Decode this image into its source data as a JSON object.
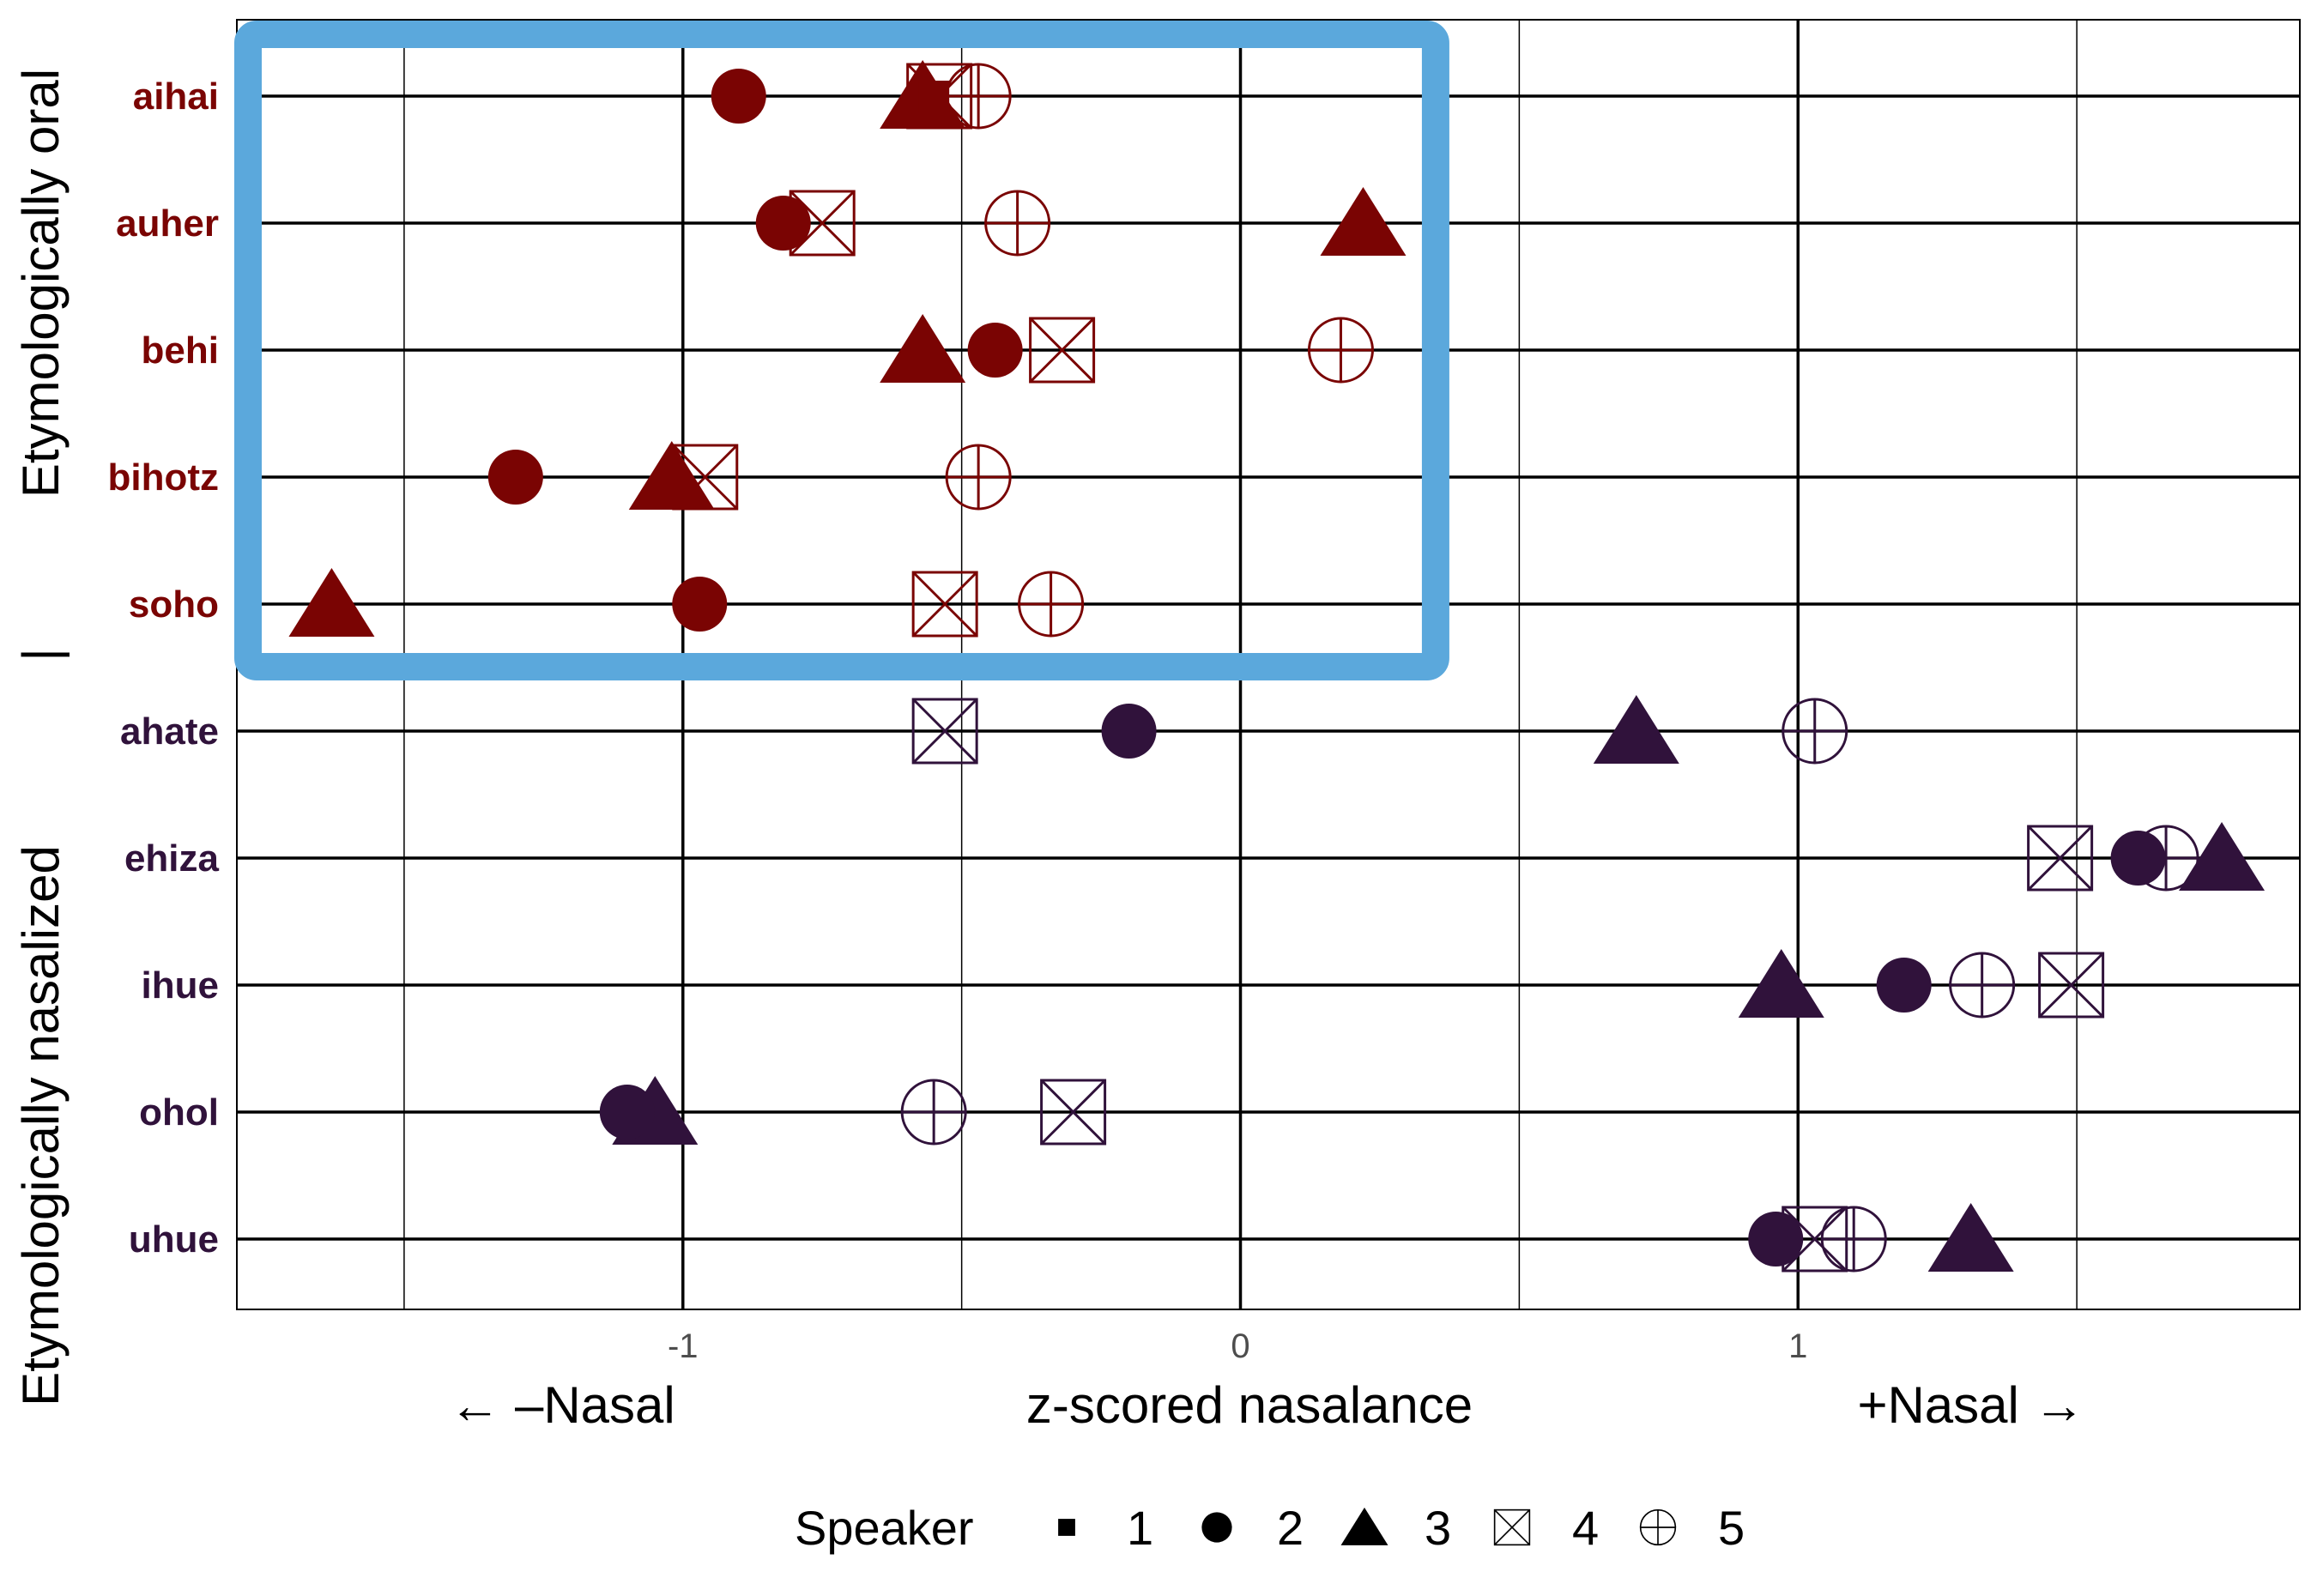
{
  "chart_data": {
    "type": "scatter",
    "xlabel": "z-scored nasalance",
    "xlabel_left": "← –Nasal",
    "xlabel_right": "+Nasal →",
    "xlim": [
      -1.8,
      1.9
    ],
    "xticks": [
      -1,
      0,
      1
    ],
    "xtick_labels": [
      "-1",
      "0",
      "1"
    ],
    "minor_gridlines": [
      -1.5,
      -0.5,
      0.5,
      1.5
    ],
    "grid": true,
    "legend": {
      "title": "Speaker",
      "position": "bottom",
      "entries": [
        {
          "label": "1",
          "shape": "filled-square"
        },
        {
          "label": "2",
          "shape": "filled-circle"
        },
        {
          "label": "3",
          "shape": "filled-triangle"
        },
        {
          "label": "4",
          "shape": "square-cross"
        },
        {
          "label": "5",
          "shape": "circle-plus"
        }
      ]
    },
    "groups": [
      {
        "name": "Etymologically oral",
        "color": "#7a0403"
      },
      {
        "name": "Etymologically nasalized",
        "color": "#30123b"
      }
    ],
    "group_separator": "|",
    "highlight": {
      "color": "#5ba8dc",
      "x_range": [
        -1.78,
        0.35
      ],
      "words": [
        "aihai",
        "soho"
      ]
    },
    "words": [
      {
        "word": "aihai",
        "group": 0,
        "points": {
          "1": -0.55,
          "2": -0.9,
          "3": -0.57,
          "4": -0.54,
          "5": -0.47
        }
      },
      {
        "word": "auher",
        "group": 0,
        "points": {
          "2": -0.82,
          "3": 0.22,
          "4": -0.75,
          "5": -0.4
        }
      },
      {
        "word": "behi",
        "group": 0,
        "points": {
          "2": -0.44,
          "3": -0.57,
          "4": -0.32,
          "5": 0.18
        }
      },
      {
        "word": "bihotz",
        "group": 0,
        "points": {
          "2": -1.3,
          "3": -1.02,
          "4": -0.96,
          "5": -0.47
        }
      },
      {
        "word": "soho",
        "group": 0,
        "points": {
          "2": -0.97,
          "3": -1.63,
          "4": -0.53,
          "5": -0.34
        }
      },
      {
        "word": "ahate",
        "group": 1,
        "points": {
          "2": -0.2,
          "3": 0.71,
          "4": -0.53,
          "5": 1.03
        }
      },
      {
        "word": "ehiza",
        "group": 1,
        "points": {
          "2": 1.61,
          "3": 1.76,
          "4": 1.47,
          "5": 1.66
        }
      },
      {
        "word": "ihue",
        "group": 1,
        "points": {
          "2": 1.19,
          "3": 0.97,
          "4": 1.49,
          "5": 1.33
        }
      },
      {
        "word": "ohol",
        "group": 1,
        "points": {
          "2": -1.1,
          "3": -1.05,
          "4": -0.3,
          "5": -0.55
        }
      },
      {
        "word": "uhue",
        "group": 1,
        "points": {
          "2": 0.96,
          "3": 1.31,
          "4": 1.03,
          "5": 1.1
        }
      }
    ]
  }
}
